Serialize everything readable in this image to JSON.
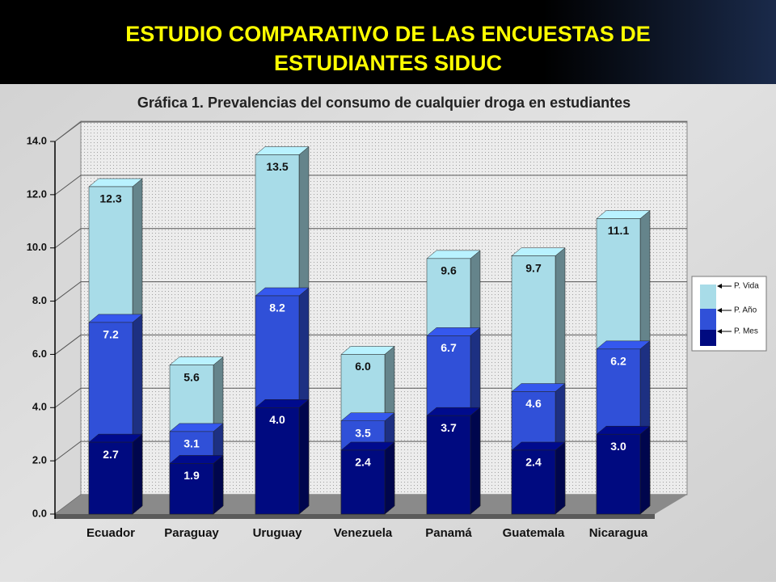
{
  "slide_title": [
    "ESTUDIO COMPARATIVO DE LAS ENCUESTAS DE",
    "ESTUDIANTES SIDUC"
  ],
  "chart_data": {
    "type": "bar",
    "title": "Gráfica 1. Prevalencias del consumo de cualquier droga en estudiantes",
    "categories": [
      "Ecuador",
      "Paraguay",
      "Uruguay",
      "Venezuela",
      "Panamá",
      "Guatemala",
      "Nicaragua"
    ],
    "series": [
      {
        "name": "P. Mes",
        "color": "#000a80",
        "values": [
          2.7,
          1.9,
          4.0,
          2.4,
          3.7,
          2.4,
          3.0
        ],
        "value_labels": [
          "2.7",
          "1.9",
          "4.0",
          "2.4",
          "3.7",
          "2.4",
          "3.0"
        ]
      },
      {
        "name": "P. Año",
        "color": "#3050d8",
        "values": [
          7.2,
          3.1,
          8.2,
          3.5,
          6.7,
          4.6,
          6.2
        ],
        "value_labels": [
          "7.2",
          "3.1",
          "8.2",
          "3.5",
          "6.7",
          "4.6",
          "6.2"
        ]
      },
      {
        "name": "P. Vida",
        "color": "#a8dce8",
        "values": [
          12.3,
          5.6,
          13.5,
          6.0,
          9.6,
          9.7,
          11.1
        ],
        "value_labels": [
          "12.3",
          "5.6",
          "13.5",
          "6.0",
          "9.6",
          "9.7",
          "11.1"
        ]
      }
    ],
    "ylim": [
      0,
      14
    ],
    "yticks": [
      {
        "value": 0,
        "label": "0.0"
      },
      {
        "value": 2,
        "label": "2.0"
      },
      {
        "value": 4,
        "label": "4.0"
      },
      {
        "value": 6,
        "label": "6.0"
      },
      {
        "value": 8,
        "label": "8.0"
      },
      {
        "value": 10,
        "label": "10.0"
      },
      {
        "value": 12,
        "label": "12.0"
      },
      {
        "value": 14,
        "label": "14.0"
      }
    ],
    "grid": true,
    "legend": "right"
  }
}
